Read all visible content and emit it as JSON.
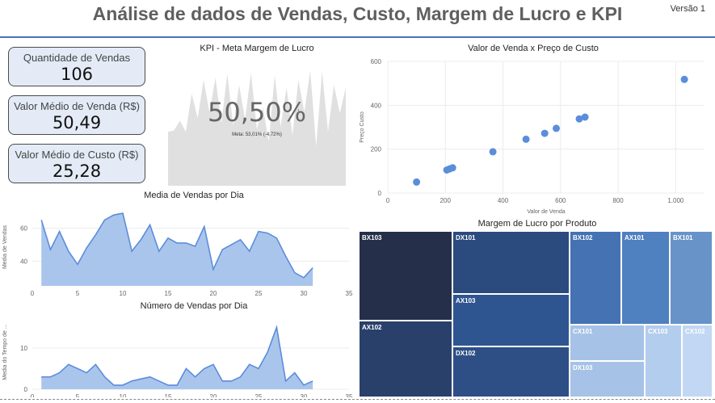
{
  "header": {
    "title": "Análise de dados de Vendas, Custo, Margem de Lucro e KPI",
    "version": "Versão 1"
  },
  "cards": [
    {
      "label": "Quantidade de Vendas",
      "value": "106"
    },
    {
      "label": "Valor Médio de Venda (R$)",
      "value": "50,49"
    },
    {
      "label": "Valor Médio de Custo (R$)",
      "value": "25,28"
    }
  ],
  "kpi": {
    "title": "KPI - Meta Margem de Lucro",
    "value": "50,50%",
    "goal": "Meta: 53,01% (-4,72%)",
    "indicator": "!"
  },
  "chart_data": [
    {
      "type": "area",
      "title": "KPI - Meta Margem de Lucro",
      "x": [
        1,
        2,
        3,
        4,
        5,
        6,
        7,
        8,
        9,
        10,
        11,
        12,
        13,
        14,
        15,
        16,
        17,
        18,
        19,
        20,
        21,
        22,
        23,
        24,
        25,
        26,
        27,
        28,
        29,
        30,
        31
      ],
      "values": [
        44,
        45,
        53,
        44,
        75,
        55,
        86,
        60,
        88,
        51,
        91,
        49,
        82,
        54,
        92,
        46,
        64,
        36,
        90,
        48,
        80,
        41,
        86,
        60,
        94,
        32,
        93,
        44,
        82,
        59,
        80
      ],
      "ylim": [
        0,
        100
      ]
    },
    {
      "type": "scatter",
      "title": "Valor de Venda x Preço de Custo",
      "xlabel": "Valor de Venda",
      "ylabel": "Preço Custo",
      "xlim": [
        0,
        1100
      ],
      "ylim": [
        0,
        600
      ],
      "xticks": [
        "0",
        "200",
        "400",
        "600",
        "800",
        "1.000"
      ],
      "yticks": [
        "0",
        "200",
        "400",
        "600"
      ],
      "points": [
        [
          100,
          50
        ],
        [
          205,
          105
        ],
        [
          215,
          110
        ],
        [
          225,
          115
        ],
        [
          365,
          188
        ],
        [
          480,
          245
        ],
        [
          545,
          272
        ],
        [
          585,
          295
        ],
        [
          665,
          338
        ],
        [
          685,
          346
        ],
        [
          1030,
          518
        ]
      ]
    },
    {
      "type": "area",
      "title": "Media de Vendas por Dia",
      "ylabel": "Media de Vendas",
      "xlim": [
        0,
        35
      ],
      "ylim": [
        25,
        72
      ],
      "xticks": [
        "0",
        "5",
        "10",
        "15",
        "20",
        "25",
        "30",
        "35"
      ],
      "yticks": [
        "40",
        "60"
      ],
      "x": [
        1,
        2,
        3,
        4,
        5,
        6,
        7,
        8,
        9,
        10,
        11,
        12,
        13,
        14,
        15,
        16,
        17,
        18,
        19,
        20,
        21,
        22,
        23,
        24,
        25,
        26,
        27,
        28,
        29,
        30,
        31
      ],
      "values": [
        65,
        47,
        58,
        46,
        38,
        48,
        56,
        65,
        68,
        69,
        46,
        53,
        62,
        46,
        54,
        51,
        51,
        49,
        61,
        35,
        47,
        50,
        53,
        46,
        58,
        57,
        54,
        43,
        33,
        30,
        36
      ]
    },
    {
      "type": "area",
      "title": "Número de Vendas por Dia",
      "ylabel": "Media do Tempo de ...",
      "xlim": [
        0,
        35
      ],
      "ylim": [
        0,
        18
      ],
      "xticks": [
        "0",
        "5",
        "10",
        "15",
        "20",
        "25",
        "30",
        "35"
      ],
      "yticks": [
        "0",
        "10"
      ],
      "x": [
        1,
        2,
        3,
        4,
        5,
        6,
        7,
        8,
        9,
        10,
        11,
        12,
        13,
        14,
        15,
        16,
        17,
        18,
        19,
        20,
        21,
        22,
        23,
        24,
        25,
        26,
        27,
        28,
        29,
        30,
        31
      ],
      "values": [
        3,
        3,
        4,
        6,
        5,
        4,
        6,
        3,
        1,
        1,
        2,
        2.5,
        3,
        2,
        1,
        1,
        5,
        3,
        5,
        6,
        2,
        2,
        3,
        6,
        5,
        9,
        15,
        2,
        4,
        1,
        2
      ]
    },
    {
      "type": "treemap",
      "title": "Margem de Lucro por Produto",
      "categories": [
        "BX103",
        "AX102",
        "DX101",
        "AX103",
        "DX102",
        "BX102",
        "AX101",
        "BX101",
        "CX101",
        "DX103",
        "CX103",
        "CX102"
      ]
    }
  ],
  "treemap_colors": [
    "#252f4a",
    "#29406b",
    "#2b4a7e",
    "#2f5590",
    "#2e4f86",
    "#4472b3",
    "#4f80bf",
    "#6793c9",
    "#a6c2e6",
    "#a6c2e6",
    "#b3cdee",
    "#c2d7f3"
  ],
  "accent": "#5b8ddb",
  "area_fill": "#aac5ec",
  "kpi_fill": "#e0e0e0"
}
